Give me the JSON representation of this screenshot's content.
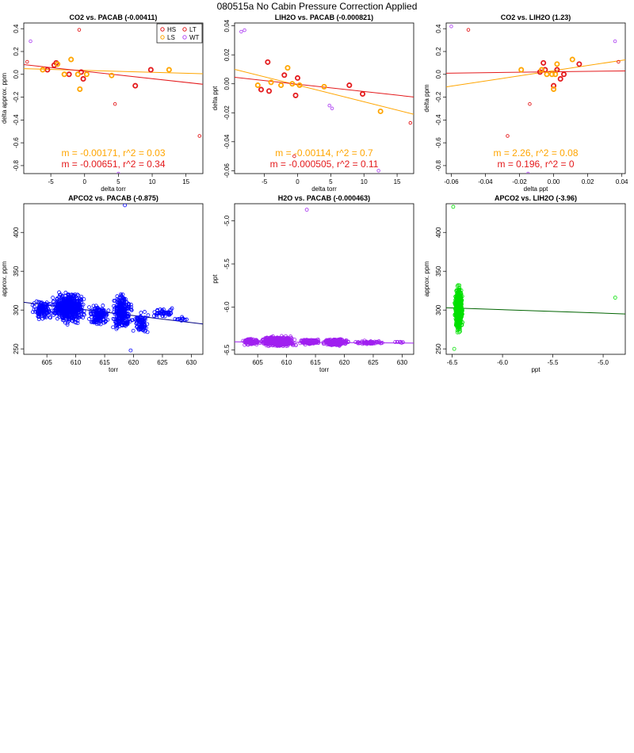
{
  "page": {
    "title": "080515a   No Cabin Pressure Correction Applied"
  },
  "colors": {
    "HS": "#e41a1c",
    "LS": "#ffa500",
    "LT": "#e41a1c",
    "WT": "#b24bf3",
    "blue": "#0000ff",
    "purple": "#a020f0",
    "green": "#00e000",
    "darkgreen": "#006400",
    "navy": "#000080"
  },
  "legend": {
    "placement": "top-right of first panel",
    "entries": [
      "HS",
      "LS",
      "LT",
      "WT"
    ]
  },
  "chart_data": [
    {
      "type": "scatter",
      "title": "CO2 vs. PACAB (-0.00411)",
      "xlabel": "delta torr",
      "ylabel": "delta approx. ppm",
      "xlim": [
        -9,
        17.5
      ],
      "ylim": [
        -0.87,
        0.45
      ],
      "xticks": [
        -5,
        0,
        5,
        10,
        15
      ],
      "yticks": [
        -0.8,
        -0.6,
        -0.4,
        -0.2,
        0.0,
        0.2,
        0.4
      ],
      "xtick_labels": [
        "-5",
        "0",
        "5",
        "10",
        "15"
      ],
      "ytick_labels": [
        "-0.8",
        "-0.6",
        "-0.4",
        "-0.2",
        "0.0",
        "0.2",
        "0.4"
      ],
      "series": [
        {
          "name": "HS",
          "color": "#e41a1c",
          "thick": true,
          "points": [
            [
              -5.5,
              0.04
            ],
            [
              -4.5,
              0.08
            ],
            [
              -4.2,
              0.1
            ],
            [
              -2.3,
              0.0
            ],
            [
              -0.5,
              0.02
            ],
            [
              -0.2,
              -0.04
            ],
            [
              7.5,
              -0.1
            ],
            [
              9.8,
              0.04
            ]
          ]
        },
        {
          "name": "LS",
          "color": "#ffa500",
          "thick": true,
          "points": [
            [
              -6.2,
              0.04
            ],
            [
              -4.0,
              0.09
            ],
            [
              -3.0,
              0.0
            ],
            [
              -2.0,
              0.13
            ],
            [
              -1.0,
              0.0
            ],
            [
              -0.7,
              -0.13
            ],
            [
              0.3,
              0.0
            ],
            [
              4.0,
              -0.01
            ],
            [
              12.5,
              0.04
            ]
          ]
        },
        {
          "name": "LT",
          "color": "#e41a1c",
          "thick": false,
          "points": [
            [
              -8.5,
              0.11
            ],
            [
              -0.8,
              0.39
            ],
            [
              4.5,
              -0.26
            ],
            [
              17.0,
              -0.54
            ]
          ]
        },
        {
          "name": "WT",
          "color": "#b24bf3",
          "thick": false,
          "points": [
            [
              -8.0,
              0.29
            ],
            [
              5.0,
              -0.87
            ]
          ]
        }
      ],
      "fit_lines": [
        {
          "name": "LS fit",
          "color": "#ffa500",
          "x": [
            -9,
            17.5
          ],
          "y": [
            0.05,
            0.005
          ]
        },
        {
          "name": "HS fit",
          "color": "#e41a1c",
          "x": [
            -9,
            17.5
          ],
          "y": [
            0.085,
            -0.087
          ]
        }
      ],
      "annotations": [
        {
          "text": "m = -0.00171, r^2 = 0.03",
          "color": "#ffa500"
        },
        {
          "text": "m = -0.00651, r^2 = 0.34",
          "color": "#e41a1c"
        }
      ],
      "legend": true
    },
    {
      "type": "scatter",
      "title": "LIH2O vs. PACAB (-0.000821)",
      "xlabel": "delta torr",
      "ylabel": "delta ppt",
      "xlim": [
        -9.5,
        17.5
      ],
      "ylim": [
        -0.062,
        0.042
      ],
      "xticks": [
        -5,
        0,
        5,
        10,
        15
      ],
      "yticks": [
        -0.06,
        -0.04,
        -0.02,
        0.0,
        0.02,
        0.04
      ],
      "xtick_labels": [
        "-5",
        "0",
        "5",
        "10",
        "15"
      ],
      "ytick_labels": [
        "-0.06",
        "-0.04",
        "-0.02",
        "0.00",
        "0.02",
        "0.04"
      ],
      "series": [
        {
          "name": "HS",
          "color": "#e41a1c",
          "thick": true,
          "points": [
            [
              -5.5,
              -0.004
            ],
            [
              -4.5,
              0.015
            ],
            [
              -4.3,
              -0.005
            ],
            [
              -2.0,
              0.006
            ],
            [
              -0.3,
              -0.008
            ],
            [
              0.0,
              0.004
            ],
            [
              7.8,
              -0.001
            ],
            [
              9.8,
              -0.007
            ]
          ]
        },
        {
          "name": "LS",
          "color": "#ffa500",
          "thick": true,
          "points": [
            [
              -6.0,
              -0.001
            ],
            [
              -4.0,
              0.001
            ],
            [
              -2.5,
              -0.001
            ],
            [
              -1.5,
              0.011
            ],
            [
              -0.8,
              0.0
            ],
            [
              0.3,
              -0.001
            ],
            [
              4.0,
              -0.002
            ],
            [
              12.5,
              -0.019
            ]
          ]
        },
        {
          "name": "LT",
          "color": "#e41a1c",
          "thick": false,
          "points": [
            [
              -0.5,
              -0.05
            ],
            [
              17.0,
              -0.027
            ]
          ]
        },
        {
          "name": "WT",
          "color": "#b24bf3",
          "thick": false,
          "points": [
            [
              -8.5,
              0.036
            ],
            [
              -8.0,
              0.037
            ],
            [
              4.8,
              -0.015
            ],
            [
              5.2,
              -0.017
            ],
            [
              12.2,
              -0.06
            ]
          ]
        }
      ],
      "fit_lines": [
        {
          "name": "LS fit",
          "color": "#ffa500",
          "x": [
            -9.5,
            17.5
          ],
          "y": [
            0.01,
            -0.021
          ]
        },
        {
          "name": "HS fit",
          "color": "#e41a1c",
          "x": [
            -9.5,
            17.5
          ],
          "y": [
            0.0045,
            -0.0091
          ]
        }
      ],
      "annotations": [
        {
          "text": "m = -0.00114, r^2 = 0.7",
          "color": "#ffa500"
        },
        {
          "text": "m = -0.000505, r^2 = 0.11",
          "color": "#e41a1c"
        }
      ],
      "legend": false
    },
    {
      "type": "scatter",
      "title": "CO2 vs. LIH2O (1.23)",
      "xlabel": "delta ppt",
      "ylabel": "delta ppm",
      "xlim": [
        -0.063,
        0.042
      ],
      "ylim": [
        -0.87,
        0.45
      ],
      "xticks": [
        -0.06,
        -0.04,
        -0.02,
        0.0,
        0.02,
        0.04
      ],
      "yticks": [
        -0.8,
        -0.6,
        -0.4,
        -0.2,
        0.0,
        0.2,
        0.4
      ],
      "xtick_labels": [
        "-0.06",
        "-0.04",
        "-0.02",
        "0.00",
        "0.02",
        "0.04"
      ],
      "ytick_labels": [
        "-0.8",
        "-0.6",
        "-0.4",
        "-0.2",
        "0.0",
        "0.2",
        "0.4"
      ],
      "series": [
        {
          "name": "HS",
          "color": "#e41a1c",
          "thick": true,
          "points": [
            [
              -0.008,
              0.02
            ],
            [
              -0.006,
              0.1
            ],
            [
              -0.005,
              0.04
            ],
            [
              0.0,
              -0.1
            ],
            [
              0.002,
              0.04
            ],
            [
              0.004,
              -0.04
            ],
            [
              0.006,
              0.0
            ],
            [
              0.015,
              0.09
            ]
          ]
        },
        {
          "name": "LS",
          "color": "#ffa500",
          "thick": true,
          "points": [
            [
              -0.019,
              0.04
            ],
            [
              -0.007,
              0.04
            ],
            [
              -0.004,
              0.0
            ],
            [
              -0.001,
              0.0
            ],
            [
              0.0,
              -0.13
            ],
            [
              0.001,
              0.0
            ],
            [
              0.002,
              0.09
            ],
            [
              0.011,
              0.13
            ]
          ]
        },
        {
          "name": "LT",
          "color": "#e41a1c",
          "thick": false,
          "points": [
            [
              -0.05,
              0.39
            ],
            [
              -0.027,
              -0.54
            ],
            [
              -0.014,
              -0.26
            ],
            [
              0.038,
              0.11
            ]
          ]
        },
        {
          "name": "WT",
          "color": "#b24bf3",
          "thick": false,
          "points": [
            [
              -0.06,
              0.42
            ],
            [
              -0.015,
              -0.87
            ],
            [
              0.036,
              0.29
            ]
          ]
        }
      ],
      "fit_lines": [
        {
          "name": "LS fit",
          "color": "#ffa500",
          "x": [
            -0.063,
            0.042
          ],
          "y": [
            -0.11,
            0.127
          ]
        },
        {
          "name": "HS fit",
          "color": "#e41a1c",
          "x": [
            -0.063,
            0.042
          ],
          "y": [
            0.01,
            0.03
          ]
        }
      ],
      "annotations": [
        {
          "text": "m = 2.26, r^2 = 0.08",
          "color": "#ffa500"
        },
        {
          "text": "m = 0.196, r^2 = 0",
          "color": "#e41a1c"
        }
      ],
      "legend": false
    },
    {
      "type": "scatter",
      "title": "APCO2 vs. PACAB (-0.875)",
      "xlabel": "torr",
      "ylabel": "approx. ppm",
      "xlim": [
        601,
        632
      ],
      "ylim": [
        243,
        437
      ],
      "xticks": [
        605,
        610,
        615,
        620,
        625,
        630
      ],
      "yticks": [
        250,
        300,
        350,
        400
      ],
      "xtick_labels": [
        "605",
        "610",
        "615",
        "620",
        "625",
        "630"
      ],
      "ytick_labels": [
        "250",
        "300",
        "350",
        "400"
      ],
      "clusters": [
        {
          "x": [
            602,
            606.5
          ],
          "y": [
            286,
            314
          ],
          "n": 130
        },
        {
          "x": [
            605.5,
            612
          ],
          "y": [
            280,
            326
          ],
          "n": 620
        },
        {
          "x": [
            612,
            616
          ],
          "y": [
            276,
            310
          ],
          "n": 160
        },
        {
          "x": [
            616,
            620
          ],
          "y": [
            270,
            326
          ],
          "n": 280
        },
        {
          "x": [
            619.5,
            623
          ],
          "y": [
            265,
            300
          ],
          "n": 90
        },
        {
          "x": [
            623,
            627
          ],
          "y": [
            289,
            305
          ],
          "n": 50
        },
        {
          "x": [
            626,
            630
          ],
          "y": [
            284,
            292
          ],
          "n": 12
        }
      ],
      "outliers": [
        [
          618.5,
          435
        ],
        [
          619.5,
          248
        ]
      ],
      "point_color": "#0000ff",
      "fit_lines": [
        {
          "name": "fit",
          "color": "#000080",
          "x": [
            601,
            632
          ],
          "y": [
            310,
            282
          ]
        }
      ],
      "legend": false
    },
    {
      "type": "scatter",
      "title": "H2O vs. PACAB (-0.000463)",
      "xlabel": "torr",
      "ylabel": "ppt",
      "xlim": [
        601,
        632
      ],
      "ylim": [
        -6.55,
        -4.8
      ],
      "xticks": [
        605,
        610,
        615,
        620,
        625,
        630
      ],
      "yticks": [
        -6.5,
        -6.0,
        -5.5,
        -5.0
      ],
      "xtick_labels": [
        "605",
        "610",
        "615",
        "620",
        "625",
        "630"
      ],
      "ytick_labels": [
        "-6.5",
        "-6.0",
        "-5.5",
        "-5.0"
      ],
      "clusters": [
        {
          "x": [
            602,
            606
          ],
          "y": [
            -6.45,
            -6.36
          ],
          "n": 90
        },
        {
          "x": [
            605,
            612
          ],
          "y": [
            -6.47,
            -6.33
          ],
          "n": 620
        },
        {
          "x": [
            612,
            616
          ],
          "y": [
            -6.44,
            -6.37
          ],
          "n": 160
        },
        {
          "x": [
            616,
            621
          ],
          "y": [
            -6.46,
            -6.36
          ],
          "n": 260
        },
        {
          "x": [
            621,
            628
          ],
          "y": [
            -6.44,
            -6.39
          ],
          "n": 60
        },
        {
          "x": [
            628,
            631
          ],
          "y": [
            -6.42,
            -6.4
          ],
          "n": 8
        }
      ],
      "outliers": [
        [
          613.5,
          -4.87
        ]
      ],
      "point_color": "#a020f0",
      "fit_lines": [
        {
          "name": "fit",
          "color": "#a020f0",
          "x": [
            601,
            632
          ],
          "y": [
            -6.405,
            -6.42
          ]
        }
      ],
      "legend": false
    },
    {
      "type": "scatter",
      "title": "APCO2 vs. LIH2O (-3.96)",
      "xlabel": "ppt",
      "ylabel": "approx. ppm",
      "xlim": [
        -6.56,
        -4.78
      ],
      "ylim": [
        243,
        437
      ],
      "xticks": [
        -6.5,
        -6.0,
        -5.5,
        -5.0
      ],
      "yticks": [
        250,
        300,
        350,
        400
      ],
      "xtick_labels": [
        "-6.5",
        "-6.0",
        "-5.5",
        "-5.0"
      ],
      "ytick_labels": [
        "250",
        "300",
        "350",
        "400"
      ],
      "clusters": [
        {
          "x": [
            -6.48,
            -6.39
          ],
          "y": [
            272,
            332
          ],
          "n": 900
        },
        {
          "x": [
            -6.47,
            -6.4
          ],
          "y": [
            260,
            340
          ],
          "n": 120
        }
      ],
      "outliers": [
        [
          -6.49,
          433
        ],
        [
          -6.48,
          250
        ],
        [
          -4.88,
          316
        ]
      ],
      "point_color": "#00e000",
      "fit_lines": [
        {
          "name": "fit",
          "color": "#006400",
          "x": [
            -6.56,
            -4.78
          ],
          "y": [
            303,
            295
          ]
        }
      ],
      "legend": false
    }
  ]
}
